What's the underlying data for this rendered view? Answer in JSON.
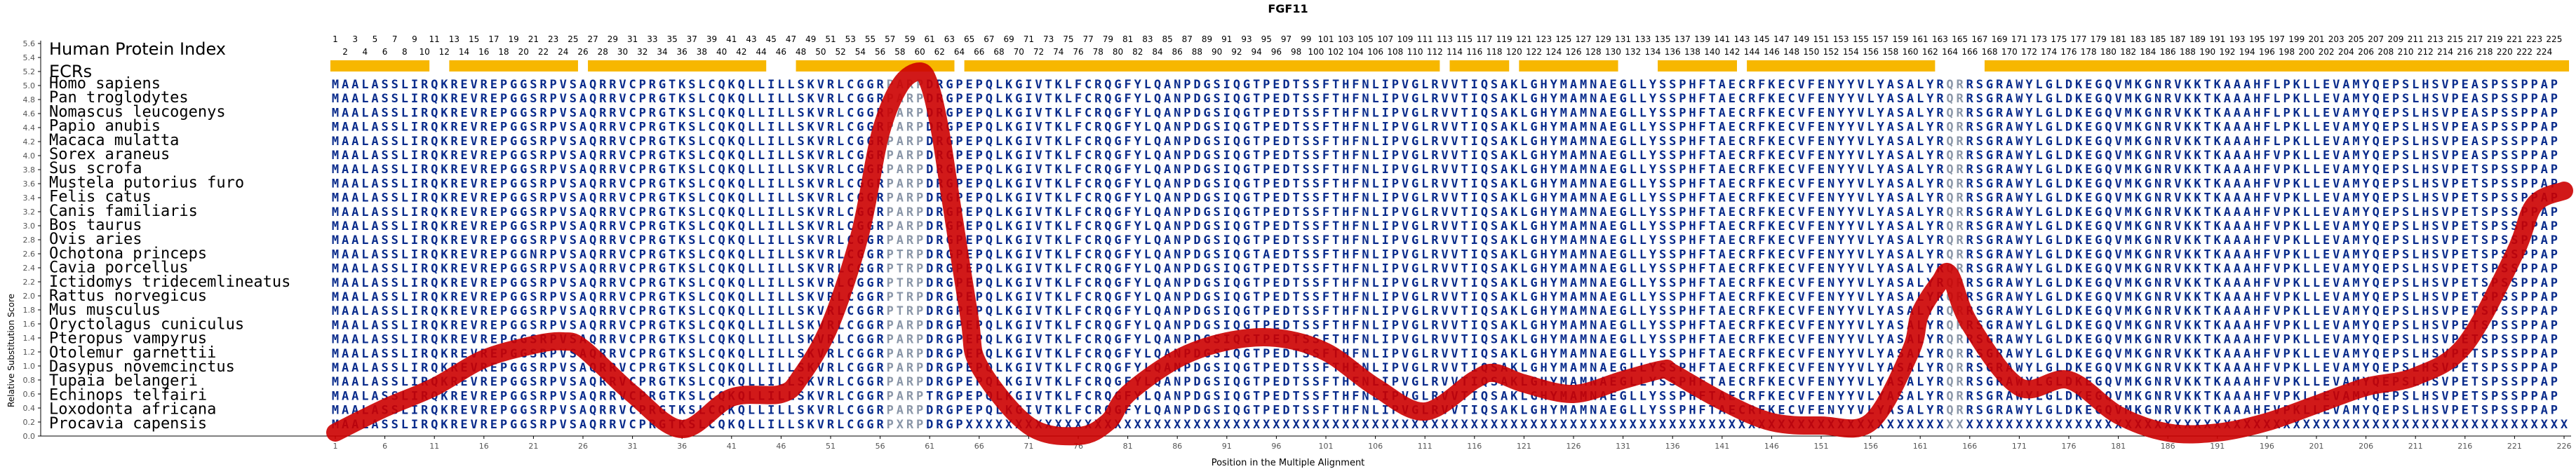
{
  "chart_data": {
    "type": "line",
    "title": "FGF11",
    "xlabel": "Position in the Multiple Alignment",
    "ylabel": "Relative Substitution Score",
    "ylim": [
      0.0,
      5.6
    ],
    "yticks": [
      0.0,
      0.2,
      0.4,
      0.6,
      0.8,
      1.0,
      1.2,
      1.4,
      1.6,
      1.8,
      2.0,
      2.2,
      2.4,
      2.6,
      2.8,
      3.0,
      3.2,
      3.4,
      3.6,
      3.8,
      4.0,
      4.2,
      4.4,
      4.6,
      4.8,
      5.0,
      5.2,
      5.4,
      5.6
    ],
    "xlim": [
      1,
      226
    ],
    "xticks": [
      1,
      6,
      11,
      16,
      21,
      26,
      31,
      36,
      41,
      46,
      51,
      56,
      61,
      66,
      71,
      76,
      81,
      86,
      91,
      96,
      101,
      106,
      111,
      116,
      121,
      126,
      131,
      136,
      141,
      146,
      151,
      156,
      161,
      166,
      171,
      176,
      181,
      186,
      191,
      196,
      201,
      206,
      211,
      216,
      221,
      226
    ],
    "human_index_label": "Human Protein Index",
    "human_index_max": 225,
    "ecr_label": "ECRs",
    "ecr_segments": [
      [
        1,
        10
      ],
      [
        13,
        25
      ],
      [
        27,
        44
      ],
      [
        48,
        63
      ],
      [
        65,
        112
      ],
      [
        114,
        119
      ],
      [
        121,
        130
      ],
      [
        135,
        142
      ],
      [
        144,
        162
      ],
      [
        168,
        226
      ]
    ],
    "series": [
      {
        "name": "",
        "color": "#cc0000",
        "x": [
          1,
          6,
          11,
          16,
          21,
          24,
          26,
          31,
          36,
          41,
          46,
          48,
          51,
          54,
          56,
          58,
          60,
          61,
          62,
          63,
          65,
          66,
          71,
          76,
          79,
          81,
          86,
          91,
          96,
          101,
          106,
          111,
          116,
          118,
          121,
          126,
          131,
          135,
          136,
          141,
          146,
          151,
          156,
          160,
          161,
          163,
          164,
          166,
          171,
          176,
          181,
          186,
          191,
          196,
          201,
          206,
          211,
          216,
          221,
          223,
          226
        ],
        "y": [
          0.05,
          0.4,
          0.7,
          1.1,
          1.3,
          1.35,
          1.25,
          0.6,
          0.1,
          0.55,
          0.6,
          0.85,
          1.6,
          2.9,
          4.3,
          5.0,
          5.2,
          5.0,
          4.4,
          3.5,
          1.7,
          1.0,
          0.15,
          0.0,
          0.2,
          0.6,
          1.1,
          1.35,
          1.4,
          1.2,
          0.7,
          0.35,
          0.8,
          0.9,
          0.75,
          0.6,
          0.8,
          0.95,
          0.9,
          0.5,
          0.2,
          0.15,
          0.2,
          1.2,
          1.75,
          2.2,
          2.3,
          1.6,
          0.7,
          0.8,
          0.3,
          0.05,
          0.05,
          0.2,
          0.45,
          0.7,
          0.85,
          1.3,
          2.6,
          3.3,
          3.5
        ]
      }
    ],
    "species": [
      "Homo sapiens",
      "Pan troglodytes",
      "Nomascus leucogenys",
      "Papio anubis",
      "Macaca mulatta",
      "Sorex araneus",
      "Sus scrofa",
      "Mustela putorius furo",
      "Felis catus",
      "Canis familiaris",
      "Bos taurus",
      "Ovis aries",
      "Ochotona princeps",
      "Cavia porcellus",
      "Ictidomys tridecemlineatus",
      "Rattus norvegicus",
      "Mus musculus",
      "Oryctolagus cuniculus",
      "Pteropus vampyrus",
      "Otolemur garnettii",
      "Dasypus novemcinctus",
      "Tupaia belangeri",
      "Echinops telfairi",
      "Loxodonta africana",
      "Procavia capensis"
    ],
    "sequences": [
      "MAALASSLIRQKREVREPGGSRPVSAQRRVCPRGTKSLCQKQLLILLSKVRLCGGRPARPDRGPEPQLKGIVTKLFCRQGFYLQANPDGSIQGTPEDTSSFTHFNLIPVGLRVVTIQSAKLGHYMAMNAEGLLYSSPHFTAECRFKECVFENYYVLYASALYRQRRSGRAWYLGLDKEGQVMKGNRVKKTKAAAHFLPKLLEVAMYQEPSLHSVPEASPSSPPAP",
      "MAALASSLIRQKREVREPGGSRPVSAQRRVCPRGTKSLCQKQLLILLSKVRLCGGRPARPDRGPEPQLKGIVTKLFCRQGFYLQANPDGSIQGTPEDTSSFTHFNLIPVGLRVVTIQSAKLGHYMAMNAEGLLYSSPHFTAECRFKECVFENYYVLYASALYRQRRSGRAWYLGLDKEGQVMKGNRVKKTKAAAHFLPKLLEVAMYQEPSLHSVPEASPSSPPAP",
      "MAALASSLIRQKREVREPGGSRPVSAQRRVCPRGTKSLCQKQLLILLSKVRLCGGRPARPDRGPEPQLKGIVTKLFCRQGFYLQANPDGSIQGTPEDTSSFTHFNLIPVGLRVVTIQSAKLGHYMAMNAEGLLYSSPHFTAECRFKECVFENYYVLYASALYRQRRSGRAWYLGLDKEGQVMKGNRVKKTKAAAHFLPKLLEVAMYQEPSLHSVPEASPSSPPAP",
      "MAALASSLIRQKREVREPGGSRPVSAQRRVCPRGTKSLCQKQLLILLSKVRLCGGRPARPDRGPEPQLKGIVTKLFCRQGFYLQANPDGSIQGTPEDTSSFTHFNLIPVGLRVVTIQSAKLGHYMAMNAEGLLYSSPHFTAECRFKECVFENYYVLYASALYRQRRSGRAWYLGLDKEGQVMKGNRVKKTKAAAHFLPKLLEVAMYQEPSLHSVPEASPSSPPAP",
      "MAALASSLIRQKREVREPGGSRPVSAQRRVCPRGTKSLCQKQLLILLSKVRLCGGRPARPDRGPEPQLKGIVTKLFCRQGFYLQANPDGSIQGTPEDTSSFTHFNLIPVGLRVVTIQSAKLGHYMAMNAEGLLYSSPHFTAECRFKECVFENYYVLYASALYRQRRSGRAWYLGLDKEGQVMKGNRVKKTKAAAHFLPKLLEVAMYQEPSLHSVPEASPSSPPAP",
      "MAALASSLIRQKREVREPGGSRPVSAQRRVCPRGTKSLCQKQLLILLSKVRLCGGRPARPDRGPEPQLKGIVTKLFCRQGFYLQANPDGSIQGTPEDTSSFTHFNLIPVGLRVVTIQSAKLGHYMAMNAEGLLYSSPHFTAECRFKECVFENYYVLYASALYRQRRSGRAWYLGLDKEGQVMKGNRVKKTKAAAHFVPKLLEVAMYQEPSLHSVPEASPSSPPAP",
      "MAALASSLIRQKREVREPGGSRPVSAQRRVCPRGTKSLCQKQLLILLSKVRLCGGRPARPDRGPEPQLKGIVTKLFCRQGFYLQANPDGSIQGTPEDTSSFTHFNLIPVGLRVVTIQSAKLGHYMAMNAEGLLYSSPHFTAECRFKECVFENYYVLYASALYRQRRSGRAWYLGLDKEGQVMKGNRVKKTKAAAHFVPKLLEVAMYQEPSLHSVPETSPSSPPAP",
      "MAALASSLIRQKREVREPGGSRPVSAQRRVCPRGTKSLCQKQLLILLSKVRLCGGRPARPDRGPEPQLKGIVTKLFCRQGFYLQANPDGSIQGTPEDTSSFTHFNLIPVGLRVVTIQSAKLGHYMAMNAEGLLYSSPHFTAECRFKECVFENYYVLYASALYRQRRSGRAWYLGLDKEGQVMKGNRVKKTKAAAHFVPKLLEVAMYQEPSLHSVPETSPSSPPAP",
      "MAALASSLIRQKREVREPGGSRPVSAQRRVCPRGTKSLCQKQLLILLSKVRLCGGRPARPDRGPEPQLKGIVTKLFCRQGFYLQANPDGSIQGTPEDTSSFTHFNLIPVGLRVVTIQSAKLGHYMAMNAEGLLYSSPHFTAECRFKECVFENYYVLYASALYRQRRSGRAWYLGLDKEGQVMKGNRVKKTKAAAHFVPKLLEVAMYQEPSLHSVPETSPSSPPAP",
      "MAALASSLIRQKREVREPGGSRPVSAQRRVCPRGTKSLCQKQLLILLSKVRLCGGRPARPDRGPEPQLKGIVTKLFCRQGFYLQANPDGSIQGTPEDTSSFTHFNLIPVGLRVVTIQSAKLGHYMAMNAEGLLYSSPHFTAECRFKECVFENYYVLYASALYRQRRSGRAWYLGLDKEGQVMKGNRVKKTKAAAHFVPKLLEVAMYQEPSLHSVPETSPSSPPAP",
      "MAALASSLIRQKREVREPGGSRPVSAQRRVCPRGTKSLCQKQLLILLSKVRLCGGRPARPDRGPEPQLKGIVTKLFCRQGFYLQANPDGSIQGTPEDTSSFTHFNLIPVGLRVVTIQSAKLGHYMAMNAEGLLYSSPHFTAECRFKECVFENYYVLYASALYRQRRSGRAWYLGLDKEGQVMKGNRVKKTKAAAHFVPKLLEVAMYQEPSLHSVPETSPSSPPAP",
      "MAALASSLIRQKREVREPGGSRPVSAQRRVCPRGTKSLCQKQLLILLSKVRLCGGRPARPDRGPEPQLKGIVTKLFCRQGFYLQANPDGSIQGTPEDTSSFTHFNLIPVGLRVVTIQSAKLGHYMAMNAEGLLYSSPHFTAECRFKECVFENYYVLYASALYRQRRSGRAWYLGLDKEGQVMKGNRVKKTKAAAHFVPKLLEVAMYQEPSLHSVPETSPSSPPAP",
      "MAALASSLIRQKREVREPGGNRPVSAQRRVCPRGTKSLCQKQLLILLSKVRLCGGRPTRPDRGPEPQLKGIVTKLFCRQGFYLQANPDGSIQGTAEDTSSFTHFNLIPVGLRVVTIQSAKLGHYMAMNAEGLLYSSPHFTAECRFKECVFENYYVLYASALYRQRRSGRAWYLGLDKEGQVMKGNRVKKTKAAAHFVPKLLEVAMYQEPSLHSVPETSPSSPPAP",
      "MAALASSLIRQKREVREPGGSRPVSAQRRVCPRGTKSLCQKQLLILLSKVRLCGGRPTRPDRGPEPQLKGIVTKLFCRQGFYLQANPDGSIQGTPEDTSSFTHFNLIPVGLRVVTIQSAKLGHYMAMNAEGLLYSSPHFTAECRFKECVFENYYVLYASALYRQRRSGRAWYLGLDKEGQVMKGNRVKKTKAAAHFVPKLLEVAMYQEPSLHSVPETSPSSPPAP",
      "MAALASSLIRQKREVREPGGSRPVSAQRRVCPRGTKSLCQKQLLILLSKVRLCGGRPTRPDRGPEPQLKGIVTKLFCRQGFYLQANPDGSIQGTPEDTSSFTHFNLIPVGLRVVTIQSAKLGHYMAMNAEGLLYSSPHFTAECRFKECVFENYYVLYASALYRQRRSGRAWYLGLDKEGQVMKGNRVKKTKAAAHFVPKLLEVAMYQEPSLHSVPETSPSSPPAP",
      "MAALASSLIRQKREVREPGGSRPVSAQRRVCPRGTKSLCQKQLLILLSKVRLCGGRPTRPDRGPEPQLKGIVTKLFCRQGFYLQANPDGSIQGTPEDTSSFTHFNLIPVGLRVVTIQSAKLGHYMAMNAEGLLYSSPHFTAECRFKECVFENYYVLYASALYRQRRSGRAWYLGLDKEGQVMKGNRVKKTKAAAHFVPKLLEVAMYQEPSLHSVPETSPSSPPAP",
      "MAALASSLIRQKREVREPGGSRPVSAQRRVCPRGTKSLCQKQLLILLSKVRLCGGRPTRPDRGPEPQLKGIVTKLFCRQGFYLQANPDGSIQGTPEDTSSFTHFNLIPVGLRVVTIQSAKLGHYMAMNAEGLLYSSPHFTAECRFKECVFENYYVLYASALYRQRRSGRAWYLGLDKEGQVMKGNRVKKTKAAAHFVPKLLEVAMYQEPSLHSVPETSPSSPPAP",
      "MAALASSLIRQKREVREPGGSRPVSAQRRVCPRGTKSLCQKQLLILLSKVRLCGGRPARPDRGPEPQLKGIVTKLFCRQGFYLQANPDGSIQGTPEDTSSFTHFNLIPVGLRVVTIQSAKLGHYMAMNAEGLLYSSPHFTAECRFKECVFENYYVLYASALYRQRRSGRAWYLGLDKEGQVMKGNRVKKTKAAAHFVPKLLEVAMYQEPSLHSVPETSPSSPPAP",
      "MAALASSLIRQKREVREPGGSRPVSAQRRVCPRGTKSLCQKQLLILLSKVRLCGGRPARPDRGPEPQLKGIVTKLFCRQGFYLQANPDGSIQGTPEDTSSFTHFNLIPVGLRVVTIQSAKLGHYMAMNAEGLLYSSPHFTAECRFKECVFENYYVLYASALYRQRRSGRAWYLGLDKEGQVMKGNRVKKTKAAAHFVPKLLEVAMYQEPSLHSVPETSPSSPPAP",
      "MAALASSLIRQKREVREPGGSRPVSAQRRVCPRGTKSLCQKQLLILLSKVRLCGGRPARPDRGPEPQLKGIVTKLFCRQGFYLQANPDGSIQGTPEDTSSFTHFNLIPVGLRVVTIQSAKLGHYMAMNAEGLLYSSPHFTAECRFKECVFENYYVLYASALYRQRRSGRAWYLGLDKEGQVMKGNRVKKTKAAAHFVPKLLEVAMYQEPSLHSVPETSPSSPPAP",
      "MAALASSLIRQKREVREPGGSRPVSAQRRVCPRGTKSLCQKQLLILLSKVRLCGGRPARPDRGPEPQLKGIVTKLFCRQGFYLQANPDGSIQGTPEDTSSFTHFNLIPVGLRVVTIQSAKLGHYMAMNAEGLLYSSPHFTAECRFKECVFENYYVLYASALYRQRRSGRAWYLGLDKEGQVMKGNRVKKTKAAAHFVPKLLEVAMYQEPSLHSVPETSPSSPPAP",
      "MAALASSLIRQKREVREPGGSRPVSAQRRVCPRGTKSLCQKQLLILLSKVRLCGGRPARPDRGPEPQLKGIVTKLFCRQGFYLQANPDGSIQGTPEDTSSFTHFNLIPVGLRVVTIQSAKLGHYMAMNAEGLLYSSPHFTAECRFKECVFENYYVLYASALYRQRRSGRAWYLGLDKEGQVMKGNRVKKTKAAAHFVPKLLEVAMYQEPSLHSVPETSPSSPPAP",
      "MAALASSLIRQKREVREPGGSRPVSAQRRVCPRGTKSLCQKQLLILLSKVRLCGGRPARPTRGPEPQLKGIVTKLFCRQGFYLQANPDGSIQGTPEDTSSFTHFNLIPVGLRVVTIQSAKLGHYMAMNAEGLLYSSPHFTAECRFKECVFENYYVLYASALYRQRRSGRAWYLGLDKEGQVMKGNRVKKTKAAAHFVPKLLEVAMYQEPSLHSVPETSPSSPPAP",
      "MAALASSLIRQKREVREPGGSRPVSAQRRVCPRGTKSLCQKQLLILLSKVRLCGGRPARPDRGPEPQLKGIVTKLFCRQGFYLQANPDGSIQGTPEDTSSFTHFNLIPVGLRVVTIQSAKLGHYMAMNAEGLLYSSPHFTAECRFKECVFENYYVLYASALYRQRRSGRAWYLGLDKEGQVMKGNRVKKTKAAAHFVPKLLEVAMYQEPSLHSVPETSPSSPPAP",
      "MAALASSLIRQKREVREPGGSRPVSAQRRVCPRGTKSLCQKQLLILLSKVRLCGGRPXRPDRGPXXXXXXXXXXXXXXXXXXXXXXXXXXXXXXXXXXXXXXXXXXXXXXXXXXXXXXXXXXXXXXXXXXXXXXXXXXXXXXXXXXXXXXXXXXXXXXXXXXXXXXXXXXXXXXXXXXXXXXXXXXXXXXXXXXXXXXXXXXXXXXXXXXXXXXXXXXXXXXXXXX"
    ],
    "colors": {
      "background": "#ffffff",
      "axis": "#000000",
      "grid_tick": "#555555",
      "sequence_text": "#0a2c8c",
      "variant_text": "#8a96a8",
      "ecr_bar": "#f7b700",
      "curve": "#cc0000"
    },
    "variant_columns": [
      57,
      58,
      59,
      60,
      164,
      165
    ]
  }
}
